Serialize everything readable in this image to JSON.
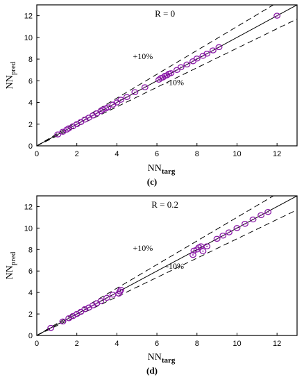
{
  "chart_data": [
    {
      "type": "scatter",
      "panel_label": "(c)",
      "annotation": "R = 0",
      "xlabel_main": "NN",
      "xlabel_sub": "targ",
      "ylabel_main": "NN",
      "ylabel_sub": "pred",
      "xlim": [
        0,
        13
      ],
      "ylim": [
        0,
        13
      ],
      "xticks": [
        0,
        2,
        4,
        6,
        8,
        10,
        12
      ],
      "yticks": [
        0,
        2,
        4,
        6,
        8,
        10,
        12
      ],
      "bands": {
        "upper_label": "+10%",
        "lower_label": "-10%"
      },
      "marker_color": "#8b1aa8",
      "points": [
        [
          1.05,
          1.05
        ],
        [
          1.3,
          1.3
        ],
        [
          1.5,
          1.5
        ],
        [
          1.6,
          1.62
        ],
        [
          1.8,
          1.8
        ],
        [
          2.0,
          2.0
        ],
        [
          2.2,
          2.2
        ],
        [
          2.4,
          2.42
        ],
        [
          2.6,
          2.6
        ],
        [
          2.8,
          2.8
        ],
        [
          3.0,
          3.0
        ],
        [
          3.2,
          3.2
        ],
        [
          3.3,
          3.35
        ],
        [
          3.45,
          3.45
        ],
        [
          3.55,
          3.55
        ],
        [
          3.8,
          3.8
        ],
        [
          4.0,
          4.0
        ],
        [
          4.2,
          4.25
        ],
        [
          4.5,
          4.5
        ],
        [
          4.9,
          4.95
        ],
        [
          5.4,
          5.4
        ],
        [
          6.1,
          6.1
        ],
        [
          6.2,
          6.25
        ],
        [
          6.3,
          6.3
        ],
        [
          6.4,
          6.45
        ],
        [
          6.5,
          6.5
        ],
        [
          6.6,
          6.65
        ],
        [
          6.7,
          6.7
        ],
        [
          7.0,
          7.0
        ],
        [
          7.2,
          7.25
        ],
        [
          7.5,
          7.5
        ],
        [
          7.8,
          7.8
        ],
        [
          8.0,
          8.05
        ],
        [
          8.3,
          8.3
        ],
        [
          8.5,
          8.5
        ],
        [
          8.8,
          8.8
        ],
        [
          9.1,
          9.1
        ],
        [
          12.0,
          12.0
        ]
      ]
    },
    {
      "type": "scatter",
      "panel_label": "(d)",
      "annotation": "R = 0.2",
      "xlabel_main": "NN",
      "xlabel_sub": "targ",
      "ylabel_main": "NN",
      "ylabel_sub": "pred",
      "xlim": [
        0,
        13
      ],
      "ylim": [
        0,
        13
      ],
      "xticks": [
        0,
        2,
        4,
        6,
        8,
        10,
        12
      ],
      "yticks": [
        0,
        2,
        4,
        6,
        8,
        10,
        12
      ],
      "bands": {
        "upper_label": "+10%",
        "lower_label": "-10%"
      },
      "marker_color": "#8b1aa8",
      "points": [
        [
          0.7,
          0.7
        ],
        [
          1.3,
          1.3
        ],
        [
          1.6,
          1.6
        ],
        [
          1.8,
          1.8
        ],
        [
          2.0,
          2.0
        ],
        [
          2.2,
          2.2
        ],
        [
          2.4,
          2.45
        ],
        [
          2.6,
          2.6
        ],
        [
          2.8,
          2.8
        ],
        [
          3.0,
          3.0
        ],
        [
          3.2,
          3.2
        ],
        [
          3.5,
          3.5
        ],
        [
          3.8,
          3.8
        ],
        [
          4.1,
          3.9
        ],
        [
          4.15,
          4.1
        ],
        [
          4.2,
          4.25
        ],
        [
          7.8,
          7.5
        ],
        [
          7.85,
          7.9
        ],
        [
          8.0,
          8.0
        ],
        [
          8.1,
          8.2
        ],
        [
          8.2,
          8.3
        ],
        [
          8.3,
          7.85
        ],
        [
          8.5,
          8.3
        ],
        [
          9.0,
          9.0
        ],
        [
          9.3,
          9.3
        ],
        [
          9.6,
          9.6
        ],
        [
          10.0,
          10.0
        ],
        [
          10.4,
          10.4
        ],
        [
          10.8,
          10.8
        ],
        [
          11.2,
          11.2
        ],
        [
          11.55,
          11.5
        ]
      ]
    }
  ]
}
